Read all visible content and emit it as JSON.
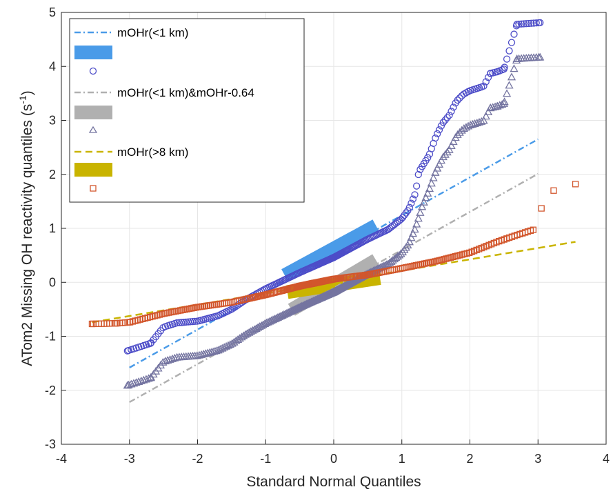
{
  "chart_data": {
    "type": "scatter",
    "title": "",
    "xlabel": "Standard Normal Quantiles",
    "ylabel": "ATom2 Missing OH reactivity quantiles (s",
    "ylabel_sup": "-1",
    "ylabel_tail": ")",
    "xlim": [
      -4,
      4
    ],
    "ylim": [
      -3,
      5
    ],
    "xticks": [
      "-4",
      "-3",
      "-2",
      "-1",
      "0",
      "1",
      "2",
      "3",
      "4"
    ],
    "yticks": [
      "-3",
      "-2",
      "-1",
      "0",
      "1",
      "2",
      "3",
      "4",
      "5"
    ],
    "grid": true,
    "legend_position": "top-left",
    "series": [
      {
        "name": "mOHr(<1 km)",
        "color": "#4a9be8",
        "scatter_color": "#4d4dc8",
        "marker": "circle",
        "ref_line": [
          [
            -3.0,
            -1.58
          ],
          [
            3.0,
            2.65
          ]
        ],
        "iqr_band": [
          [
            -0.72,
            0.13
          ],
          [
            0.62,
            1.05
          ]
        ],
        "profile": [
          [
            -3.03,
            -1.27
          ],
          [
            -2.69,
            -1.13
          ],
          [
            -2.5,
            -0.83
          ],
          [
            -2.3,
            -0.75
          ],
          [
            -2.0,
            -0.72
          ],
          [
            -1.7,
            -0.62
          ],
          [
            -1.5,
            -0.5
          ],
          [
            -1.3,
            -0.33
          ],
          [
            -1.0,
            -0.12
          ],
          [
            -0.5,
            0.18
          ],
          [
            0.0,
            0.46
          ],
          [
            0.5,
            0.8
          ],
          [
            0.8,
            0.98
          ],
          [
            1.0,
            1.18
          ],
          [
            1.1,
            1.35
          ],
          [
            1.2,
            1.65
          ],
          [
            1.25,
            2.05
          ],
          [
            1.4,
            2.35
          ],
          [
            1.5,
            2.7
          ],
          [
            1.6,
            2.95
          ],
          [
            1.7,
            3.1
          ],
          [
            1.8,
            3.35
          ],
          [
            1.9,
            3.48
          ],
          [
            2.0,
            3.55
          ],
          [
            2.2,
            3.63
          ],
          [
            2.3,
            3.87
          ],
          [
            2.4,
            3.9
          ],
          [
            2.5,
            3.95
          ],
          [
            2.69,
            4.78
          ],
          [
            3.03,
            4.81
          ]
        ],
        "extremes": [
          [
            -3.03,
            -1.27
          ],
          [
            -2.69,
            -1.13
          ],
          [
            2.69,
            4.78
          ],
          [
            3.03,
            4.81
          ],
          [
            2.3,
            3.87
          ],
          [
            2.4,
            3.9
          ],
          [
            2.5,
            3.95
          ]
        ]
      },
      {
        "name": "mOHr(<1 km)&mOHr-0.64",
        "color": "#b0b0b0",
        "scatter_color": "#7474a0",
        "marker": "triangle",
        "ref_line": [
          [
            -3.0,
            -2.22
          ],
          [
            3.0,
            2.01
          ]
        ],
        "iqr_band": [
          [
            -0.62,
            -0.51
          ],
          [
            0.62,
            0.41
          ]
        ],
        "profile": [
          [
            -3.03,
            -1.91
          ],
          [
            -2.69,
            -1.77
          ],
          [
            -2.5,
            -1.47
          ],
          [
            -2.3,
            -1.39
          ],
          [
            -2.0,
            -1.36
          ],
          [
            -1.7,
            -1.26
          ],
          [
            -1.5,
            -1.14
          ],
          [
            -1.3,
            -0.97
          ],
          [
            -1.0,
            -0.76
          ],
          [
            -0.5,
            -0.46
          ],
          [
            0.0,
            -0.18
          ],
          [
            0.5,
            0.16
          ],
          [
            0.8,
            0.34
          ],
          [
            1.0,
            0.54
          ],
          [
            1.1,
            0.71
          ],
          [
            1.2,
            1.01
          ],
          [
            1.3,
            1.41
          ],
          [
            1.4,
            1.71
          ],
          [
            1.5,
            2.06
          ],
          [
            1.6,
            2.31
          ],
          [
            1.7,
            2.46
          ],
          [
            1.8,
            2.71
          ],
          [
            1.9,
            2.84
          ],
          [
            2.0,
            2.91
          ],
          [
            2.2,
            2.99
          ],
          [
            2.3,
            3.23
          ],
          [
            2.4,
            3.26
          ],
          [
            2.5,
            3.31
          ],
          [
            2.69,
            4.14
          ],
          [
            3.03,
            4.17
          ]
        ],
        "extremes": [
          [
            -3.03,
            -1.91
          ],
          [
            -2.69,
            -1.77
          ],
          [
            2.69,
            4.14
          ],
          [
            3.03,
            4.17
          ],
          [
            2.3,
            3.23
          ],
          [
            2.4,
            3.26
          ],
          [
            2.5,
            3.31
          ]
        ]
      },
      {
        "name": "mOHr(>8 km)",
        "color": "#c9b400",
        "scatter_color": "#d2562c",
        "marker": "square",
        "ref_line": [
          [
            -3.55,
            -0.74
          ],
          [
            3.55,
            0.75
          ]
        ],
        "iqr_band": [
          [
            -0.68,
            -0.18
          ],
          [
            0.68,
            0.08
          ]
        ],
        "profile": [
          [
            -3.55,
            -0.77
          ],
          [
            -3.2,
            -0.76
          ],
          [
            -3.0,
            -0.74
          ],
          [
            -2.5,
            -0.58
          ],
          [
            -2.0,
            -0.46
          ],
          [
            -1.5,
            -0.37
          ],
          [
            -1.0,
            -0.23
          ],
          [
            -0.5,
            -0.07
          ],
          [
            0.0,
            0.06
          ],
          [
            0.5,
            0.14
          ],
          [
            1.0,
            0.26
          ],
          [
            1.5,
            0.39
          ],
          [
            2.0,
            0.55
          ],
          [
            2.4,
            0.75
          ],
          [
            2.7,
            0.88
          ],
          [
            2.95,
            0.98
          ]
        ],
        "extremes": [
          [
            -3.55,
            -0.77
          ],
          [
            -3.2,
            -0.76
          ],
          [
            -3.0,
            -0.74
          ],
          [
            3.05,
            1.37
          ],
          [
            3.23,
            1.7
          ],
          [
            3.55,
            1.82
          ]
        ]
      }
    ]
  }
}
